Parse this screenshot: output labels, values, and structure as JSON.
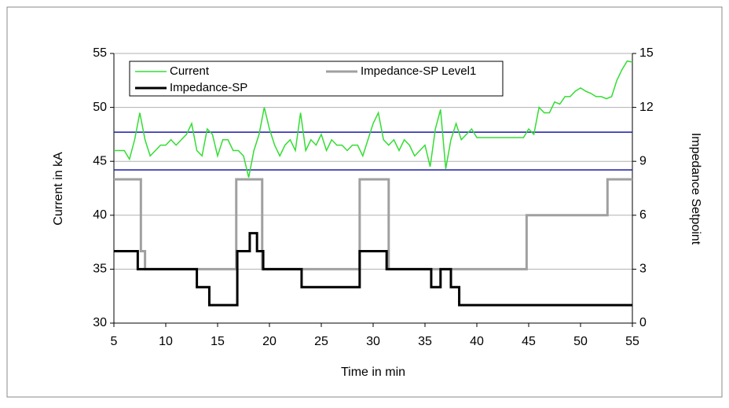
{
  "chart_data": {
    "type": "line",
    "xlabel": "Time in min",
    "ylabel": "Current in kA",
    "y2label": "Impedance Setpoint",
    "xlim": [
      5,
      55
    ],
    "xticks": [
      5,
      10,
      15,
      20,
      25,
      30,
      35,
      40,
      45,
      50,
      55
    ],
    "ylim": [
      30,
      55
    ],
    "yticks": [
      30,
      35,
      40,
      45,
      50,
      55
    ],
    "y2lim": [
      0,
      15
    ],
    "y2ticks": [
      0,
      3,
      6,
      9,
      12,
      15
    ],
    "grid": true,
    "reference_lines": {
      "color": "#1a1aa6",
      "values": [
        47.7,
        44.2
      ]
    },
    "series": [
      {
        "name": "Current",
        "color": "#33dd33",
        "axis": "y",
        "step": false,
        "x": [
          5,
          5.5,
          6,
          6.5,
          7,
          7.5,
          8,
          8.5,
          9,
          9.5,
          10,
          10.5,
          11,
          11.5,
          12,
          12.5,
          13,
          13.5,
          14,
          14.5,
          15,
          15.5,
          16,
          16.5,
          17,
          17.5,
          18,
          18.5,
          19,
          19.5,
          20,
          20.5,
          21,
          21.5,
          22,
          22.5,
          23,
          23.5,
          24,
          24.5,
          25,
          25.5,
          26,
          26.5,
          27,
          27.5,
          28,
          28.5,
          29,
          29.5,
          30,
          30.5,
          31,
          31.5,
          32,
          32.5,
          33,
          33.5,
          34,
          34.5,
          35,
          35.5,
          36,
          36.5,
          37,
          37.5,
          38,
          38.5,
          39,
          39.5,
          40,
          41,
          42,
          43,
          44,
          44.5,
          45,
          45.5,
          46,
          46.5,
          47,
          47.5,
          48,
          48.5,
          49,
          49.5,
          50,
          50.5,
          51,
          51.5,
          52,
          52.5,
          53,
          53.5,
          54,
          54.5,
          55
        ],
        "values": [
          46,
          46,
          46,
          45.2,
          47,
          49.5,
          47,
          45.5,
          46,
          46.5,
          46.5,
          47,
          46.5,
          47,
          47.5,
          48.5,
          46,
          45.5,
          48,
          47.5,
          45.5,
          47,
          47,
          46,
          46,
          45.5,
          43.5,
          46,
          47.5,
          50,
          48,
          46.5,
          45.5,
          46.5,
          47,
          46,
          49.5,
          46,
          47,
          46.5,
          47.5,
          46,
          47,
          46.5,
          46.5,
          46,
          46.5,
          46.5,
          45.5,
          47,
          48.5,
          49.5,
          47,
          46.5,
          47,
          46,
          47,
          46.5,
          45.5,
          46,
          46.5,
          44.5,
          48,
          49.8,
          44.3,
          47,
          48.5,
          47,
          47.5,
          48,
          47.2,
          47.2,
          47.2,
          47.2,
          47.2,
          47.2,
          48,
          47.5,
          50,
          49.5,
          49.5,
          50.5,
          50.3,
          51,
          51,
          51.5,
          51.8,
          51.5,
          51.3,
          51,
          51,
          50.8,
          51,
          52.5,
          53.5,
          54.3,
          54.2
        ]
      },
      {
        "name": "Impedance-SP Level1",
        "color": "#a0a0a0",
        "axis": "y2",
        "step": true,
        "x": [
          5,
          7.6,
          8,
          16.8,
          19.3,
          28.7,
          31.5,
          44.8,
          52.6,
          55
        ],
        "values": [
          8,
          4,
          3,
          8,
          3,
          8,
          3,
          6,
          8,
          8
        ]
      },
      {
        "name": "Impedance-SP",
        "color": "#000000",
        "axis": "y2",
        "step": true,
        "x": [
          5,
          7.3,
          13,
          14.2,
          16.9,
          18.1,
          18.8,
          19.4,
          23.1,
          28.7,
          31.3,
          35.6,
          36.5,
          37.5,
          38.3,
          55
        ],
        "values": [
          4,
          3,
          2,
          1,
          4,
          5,
          4,
          3,
          2,
          4,
          3,
          2,
          3,
          2,
          1,
          1
        ]
      }
    ]
  }
}
